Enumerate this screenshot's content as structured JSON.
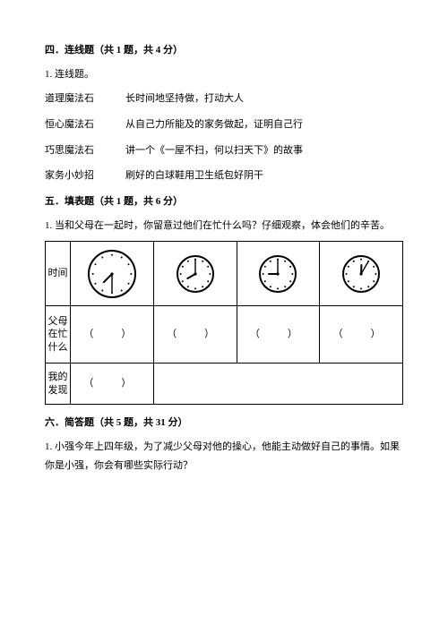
{
  "section4": {
    "heading": "四．连线题（共 1 题，共 4 分）",
    "q1_label": "1. 连线题。",
    "rows": [
      {
        "left": "道理魔法石",
        "right": "长时间地坚持做，打动大人"
      },
      {
        "left": "恒心魔法石",
        "right": "从自己力所能及的家务做起，证明自己行"
      },
      {
        "left": "巧思魔法石",
        "right": "讲一个《一屋不扫，何以扫天下》的故事"
      },
      {
        "left": "家务小妙招",
        "right": "刷好的白球鞋用卫生纸包好阴干"
      }
    ]
  },
  "section5": {
    "heading": "五．填表题（共 1 题，共 6 分）",
    "q1_text": "1. 当和父母在一起时，你留意过他们在忙什么吗？仔细观察，体会他们的辛苦。",
    "row_labels": {
      "time": "时间",
      "busy": "父母在忙什么",
      "find": "我的发现"
    },
    "paren": "（　）",
    "clocks": [
      {
        "hour": 7,
        "minute": 30,
        "r": 26,
        "stroke": "#000",
        "face": "#fff"
      },
      {
        "hour": 8,
        "minute": 0,
        "r": 20,
        "stroke": "#000",
        "face": "#fff"
      },
      {
        "hour": 9,
        "minute": 0,
        "r": 20,
        "stroke": "#000",
        "face": "#fff"
      },
      {
        "hour": 12,
        "minute": 5,
        "r": 20,
        "stroke": "#000",
        "face": "#fff"
      }
    ]
  },
  "section6": {
    "heading": "六．简答题（共 5 题，共 31 分）",
    "q1_text": "1. 小强今年上四年级，为了减少父母对他的操心，他能主动做好自己的事情。如果你是小强，你会有哪些实际行动？"
  }
}
